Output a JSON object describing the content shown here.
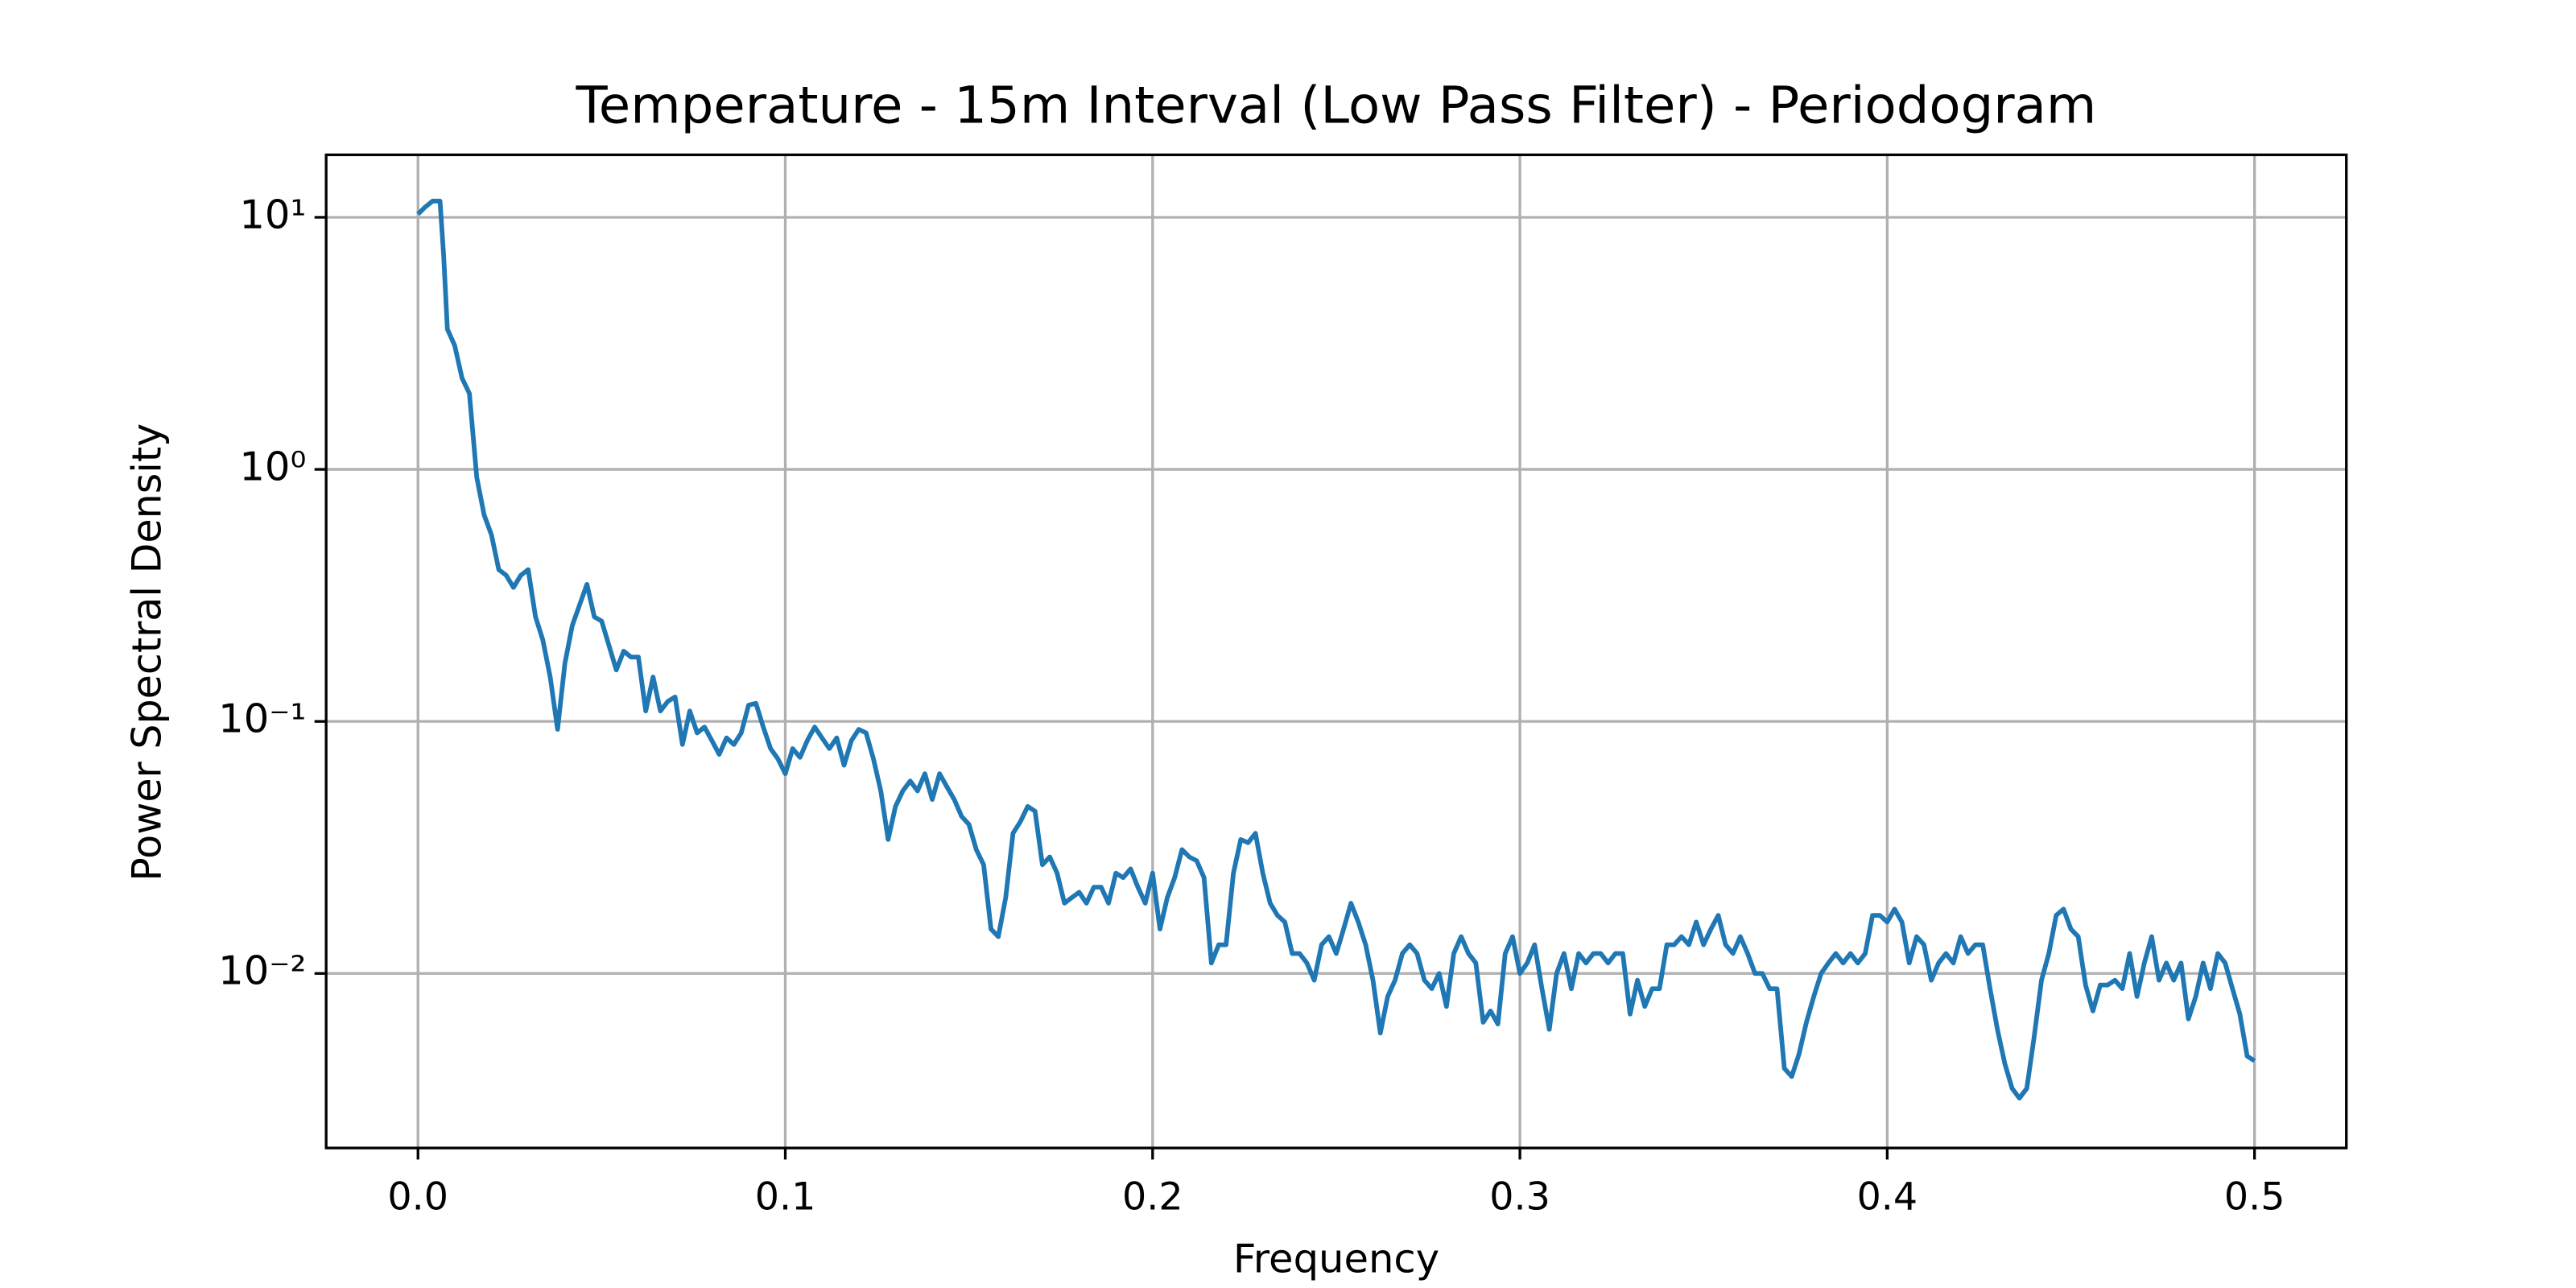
{
  "chart_data": {
    "type": "line",
    "title": "Temperature - 15m Interval (Low Pass Filter) - Periodogram",
    "x_label": "Frequency",
    "y_label": "Power Spectral Density",
    "yscale": "log",
    "grid": true,
    "xlim": [
      -0.025,
      0.525
    ],
    "xticks": [
      {
        "value": 0,
        "label": "0.0"
      },
      0.1,
      0.2,
      0.3,
      0.4,
      0.5
    ],
    "ylim": [
      0.00203,
      17.7
    ],
    "yticks": [
      {
        "value": 0.01,
        "label": "10⁻²"
      },
      {
        "value": 0.1,
        "label": "10⁻¹"
      },
      {
        "value": 1,
        "label": "10⁰"
      },
      {
        "value": 10,
        "label": "10¹"
      }
    ],
    "x": [
      0,
      0.002,
      0.004,
      0.006,
      0.007,
      0.008,
      0.01,
      0.012,
      0.014,
      0.016,
      0.018,
      0.02,
      0.022,
      0.024,
      0.026,
      0.028,
      0.03,
      0.032,
      0.034,
      0.036,
      0.038,
      0.04,
      0.042,
      0.044,
      0.046,
      0.048,
      0.05,
      0.052,
      0.054,
      0.056,
      0.058,
      0.06,
      0.062,
      0.064,
      0.066,
      0.068,
      0.07,
      0.072,
      0.074,
      0.076,
      0.078,
      0.08,
      0.082,
      0.084,
      0.086,
      0.088,
      0.09,
      0.092,
      0.094,
      0.096,
      0.098,
      0.1,
      0.102,
      0.104,
      0.106,
      0.108,
      0.11,
      0.112,
      0.114,
      0.116,
      0.118,
      0.12,
      0.122,
      0.124,
      0.126,
      0.128,
      0.13,
      0.132,
      0.134,
      0.136,
      0.138,
      0.14,
      0.142,
      0.144,
      0.146,
      0.148,
      0.15,
      0.152,
      0.154,
      0.156,
      0.158,
      0.16,
      0.162,
      0.164,
      0.166,
      0.168,
      0.17,
      0.172,
      0.174,
      0.176,
      0.178,
      0.18,
      0.182,
      0.184,
      0.186,
      0.188,
      0.19,
      0.192,
      0.194,
      0.196,
      0.198,
      0.2,
      0.202,
      0.204,
      0.206,
      0.208,
      0.21,
      0.212,
      0.214,
      0.216,
      0.218,
      0.22,
      0.222,
      0.224,
      0.226,
      0.228,
      0.23,
      0.232,
      0.234,
      0.236,
      0.238,
      0.24,
      0.242,
      0.244,
      0.246,
      0.248,
      0.25,
      0.252,
      0.254,
      0.256,
      0.258,
      0.26,
      0.262,
      0.264,
      0.266,
      0.268,
      0.27,
      0.272,
      0.274,
      0.276,
      0.278,
      0.28,
      0.282,
      0.284,
      0.286,
      0.288,
      0.29,
      0.292,
      0.294,
      0.296,
      0.298,
      0.3,
      0.302,
      0.304,
      0.306,
      0.308,
      0.31,
      0.312,
      0.314,
      0.316,
      0.318,
      0.32,
      0.322,
      0.324,
      0.326,
      0.328,
      0.33,
      0.332,
      0.334,
      0.336,
      0.338,
      0.34,
      0.342,
      0.344,
      0.346,
      0.348,
      0.35,
      0.352,
      0.354,
      0.356,
      0.358,
      0.36,
      0.362,
      0.364,
      0.366,
      0.368,
      0.37,
      0.372,
      0.374,
      0.376,
      0.378,
      0.38,
      0.382,
      0.384,
      0.386,
      0.388,
      0.39,
      0.392,
      0.394,
      0.396,
      0.398,
      0.4,
      0.402,
      0.404,
      0.406,
      0.408,
      0.41,
      0.412,
      0.414,
      0.416,
      0.418,
      0.42,
      0.422,
      0.424,
      0.426,
      0.428,
      0.43,
      0.432,
      0.434,
      0.436,
      0.438,
      0.44,
      0.442,
      0.444,
      0.446,
      0.448,
      0.45,
      0.452,
      0.454,
      0.456,
      0.458,
      0.46,
      0.462,
      0.464,
      0.466,
      0.468,
      0.47,
      0.472,
      0.474,
      0.476,
      0.478,
      0.48,
      0.482,
      0.484,
      0.486,
      0.488,
      0.49,
      0.492,
      0.494,
      0.496,
      0.498,
      0.5
    ],
    "series": [
      {
        "name": "Periodogram",
        "color": "#1f77b4",
        "values": [
          10.3,
          11,
          11.6,
          11.6,
          7.0,
          3.6,
          3.1,
          2.3,
          2.0,
          0.93,
          0.66,
          0.55,
          0.4,
          0.38,
          0.34,
          0.38,
          0.4,
          0.26,
          0.21,
          0.15,
          0.093,
          0.17,
          0.24,
          0.29,
          0.35,
          0.26,
          0.25,
          0.2,
          0.16,
          0.19,
          0.18,
          0.18,
          0.11,
          0.15,
          0.11,
          0.12,
          0.125,
          0.081,
          0.11,
          0.09,
          0.095,
          0.084,
          0.074,
          0.086,
          0.081,
          0.09,
          0.116,
          0.118,
          0.095,
          0.078,
          0.071,
          0.062,
          0.078,
          0.072,
          0.084,
          0.095,
          0.086,
          0.078,
          0.086,
          0.067,
          0.084,
          0.093,
          0.09,
          0.071,
          0.053,
          0.034,
          0.046,
          0.053,
          0.058,
          0.053,
          0.062,
          0.049,
          0.062,
          0.055,
          0.049,
          0.042,
          0.039,
          0.031,
          0.027,
          0.015,
          0.014,
          0.02,
          0.036,
          0.04,
          0.046,
          0.044,
          0.027,
          0.029,
          0.025,
          0.019,
          0.02,
          0.021,
          0.019,
          0.022,
          0.022,
          0.019,
          0.025,
          0.024,
          0.026,
          0.022,
          0.019,
          0.025,
          0.015,
          0.02,
          0.024,
          0.031,
          0.029,
          0.028,
          0.024,
          0.011,
          0.013,
          0.013,
          0.025,
          0.034,
          0.033,
          0.036,
          0.025,
          0.019,
          0.017,
          0.016,
          0.012,
          0.012,
          0.011,
          0.0094,
          0.013,
          0.014,
          0.012,
          0.015,
          0.019,
          0.016,
          0.013,
          0.0094,
          0.0058,
          0.0081,
          0.0094,
          0.012,
          0.013,
          0.012,
          0.0094,
          0.0087,
          0.01,
          0.0074,
          0.012,
          0.014,
          0.012,
          0.011,
          0.0064,
          0.0071,
          0.0063,
          0.012,
          0.014,
          0.01,
          0.011,
          0.013,
          0.0087,
          0.006,
          0.01,
          0.012,
          0.0087,
          0.012,
          0.011,
          0.012,
          0.012,
          0.011,
          0.012,
          0.012,
          0.0069,
          0.0094,
          0.0074,
          0.0087,
          0.0087,
          0.013,
          0.013,
          0.014,
          0.013,
          0.016,
          0.013,
          0.015,
          0.017,
          0.013,
          0.012,
          0.014,
          0.012,
          0.01,
          0.01,
          0.0087,
          0.0087,
          0.0042,
          0.0039,
          0.0048,
          0.0064,
          0.0081,
          0.01,
          0.011,
          0.012,
          0.011,
          0.012,
          0.011,
          0.012,
          0.017,
          0.017,
          0.016,
          0.018,
          0.016,
          0.011,
          0.014,
          0.013,
          0.0094,
          0.011,
          0.012,
          0.011,
          0.014,
          0.012,
          0.013,
          0.013,
          0.0087,
          0.006,
          0.0044,
          0.0035,
          0.0032,
          0.0035,
          0.0056,
          0.0094,
          0.012,
          0.017,
          0.018,
          0.015,
          0.014,
          0.009,
          0.0071,
          0.009,
          0.009,
          0.0094,
          0.0087,
          0.012,
          0.0081,
          0.011,
          0.014,
          0.0094,
          0.011,
          0.0094,
          0.011,
          0.0066,
          0.0081,
          0.011,
          0.0087,
          0.012,
          0.011,
          0.0087,
          0.0069,
          0.0047,
          0.0045
        ]
      }
    ]
  }
}
